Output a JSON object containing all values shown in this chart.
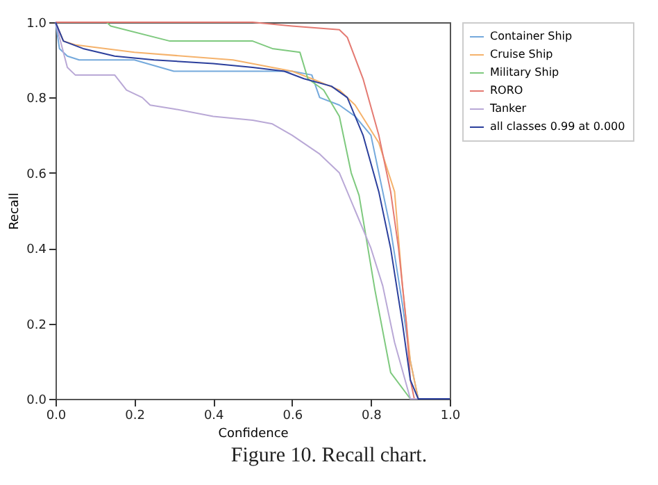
{
  "chart_data": {
    "type": "line",
    "xlabel": "Confidence",
    "ylabel": "Recall",
    "xlim": [
      0,
      1
    ],
    "ylim": [
      0,
      1
    ],
    "xticks": [
      {
        "value": 0,
        "label": "0.0"
      },
      {
        "value": 0.2,
        "label": "0.2"
      },
      {
        "value": 0.4,
        "label": "0.4"
      },
      {
        "value": 0.6,
        "label": "0.6"
      },
      {
        "value": 0.8,
        "label": "0.8"
      },
      {
        "value": 1,
        "label": "1.0"
      }
    ],
    "yticks": [
      {
        "value": 0,
        "label": "0.0"
      },
      {
        "value": 0.2,
        "label": "0.2"
      },
      {
        "value": 0.4,
        "label": "0.4"
      },
      {
        "value": 0.6,
        "label": "0.6"
      },
      {
        "value": 0.8,
        "label": "0.8"
      },
      {
        "value": 1,
        "label": "1.0"
      }
    ],
    "grid": false,
    "legend": "top right",
    "annotations": [
      "Figure 10. Recall chart."
    ],
    "series": [
      {
        "name": "Container Ship",
        "color": "#74a9dc",
        "x": [
          0,
          0.01,
          0.03,
          0.06,
          0.2,
          0.3,
          0.5,
          0.6,
          0.65,
          0.67,
          0.72,
          0.76,
          0.8,
          0.82,
          0.85,
          0.88,
          0.9,
          0.92,
          1
        ],
        "values": [
          1,
          0.93,
          0.91,
          0.9,
          0.9,
          0.87,
          0.87,
          0.87,
          0.86,
          0.8,
          0.78,
          0.75,
          0.7,
          0.6,
          0.45,
          0.25,
          0.1,
          0,
          0
        ]
      },
      {
        "name": "Cruise Ship",
        "color": "#f5b26b",
        "x": [
          0,
          0.02,
          0.05,
          0.2,
          0.45,
          0.6,
          0.65,
          0.72,
          0.76,
          0.82,
          0.86,
          0.88,
          0.9,
          0.92,
          1
        ],
        "values": [
          1,
          0.95,
          0.94,
          0.92,
          0.9,
          0.87,
          0.85,
          0.82,
          0.78,
          0.68,
          0.55,
          0.3,
          0.1,
          0,
          0
        ]
      },
      {
        "name": "Military Ship",
        "color": "#7ec97e",
        "x": [
          0,
          0.13,
          0.14,
          0.29,
          0.5,
          0.55,
          0.62,
          0.64,
          0.68,
          0.72,
          0.75,
          0.77,
          0.81,
          0.85,
          0.9,
          1
        ],
        "values": [
          1,
          1,
          0.99,
          0.95,
          0.95,
          0.93,
          0.92,
          0.85,
          0.82,
          0.75,
          0.6,
          0.54,
          0.29,
          0.07,
          0,
          0
        ]
      },
      {
        "name": "RORO",
        "color": "#e47a72",
        "x": [
          0,
          0.5,
          0.6,
          0.72,
          0.74,
          0.78,
          0.82,
          0.85,
          0.87,
          0.89,
          0.9,
          0.91,
          1
        ],
        "values": [
          1,
          1,
          0.99,
          0.98,
          0.96,
          0.85,
          0.7,
          0.55,
          0.4,
          0.2,
          0.05,
          0,
          0
        ]
      },
      {
        "name": "Tanker",
        "color": "#b9a8d6",
        "x": [
          0,
          0.03,
          0.05,
          0.15,
          0.18,
          0.22,
          0.24,
          0.3,
          0.4,
          0.5,
          0.55,
          0.6,
          0.67,
          0.72,
          0.76,
          0.8,
          0.83,
          0.86,
          0.9,
          1
        ],
        "values": [
          1,
          0.88,
          0.86,
          0.86,
          0.82,
          0.8,
          0.78,
          0.77,
          0.75,
          0.74,
          0.73,
          0.7,
          0.65,
          0.6,
          0.5,
          0.4,
          0.3,
          0.15,
          0,
          0
        ]
      },
      {
        "name": "all classes 0.99 at 0.000",
        "color": "#2b3f9c",
        "x": [
          0,
          0.02,
          0.07,
          0.15,
          0.25,
          0.4,
          0.5,
          0.58,
          0.63,
          0.7,
          0.74,
          0.78,
          0.82,
          0.85,
          0.88,
          0.9,
          0.92,
          1
        ],
        "values": [
          1,
          0.95,
          0.93,
          0.91,
          0.9,
          0.89,
          0.88,
          0.87,
          0.85,
          0.83,
          0.8,
          0.7,
          0.55,
          0.4,
          0.2,
          0.05,
          0,
          0
        ]
      }
    ]
  }
}
